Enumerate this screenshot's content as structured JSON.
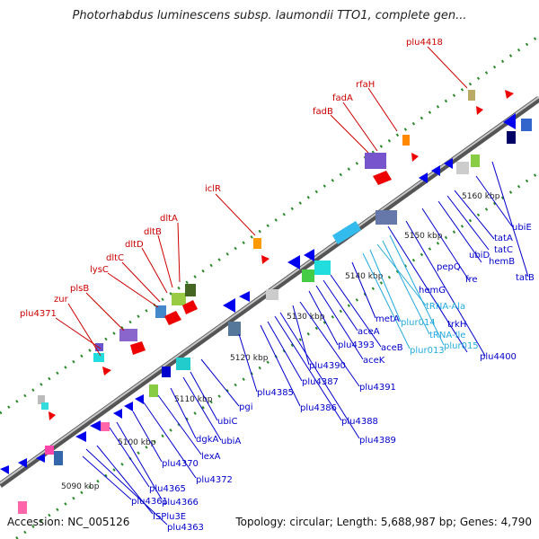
{
  "header": {
    "title": "Photorhabdus luminescens subsp. laumondii TTO1, complete gen..."
  },
  "footer": {
    "accession": "Accession: NC_005126",
    "topology": "Topology: circular; Length: 5,688,987 bp; Genes: 4,790"
  },
  "colors": {
    "upper_label": "#cc0000",
    "lower_label": "#0000cc",
    "rna_label": "#22aadd",
    "backbone": "#888888",
    "tick_dot": "#2a8a2a"
  },
  "ticks": [
    {
      "label": "5090 kbp"
    },
    {
      "label": "5100 kbp"
    },
    {
      "label": "5110 kbp"
    },
    {
      "label": "5120 kbp"
    },
    {
      "label": "5130 kbp"
    },
    {
      "label": "5140 kbp"
    },
    {
      "label": "5150 kbp"
    },
    {
      "label": "5160 kbp"
    }
  ],
  "upper_labels": [
    {
      "text": "plu4371"
    },
    {
      "text": "zur"
    },
    {
      "text": "plsB"
    },
    {
      "text": "lysC"
    },
    {
      "text": "dltC"
    },
    {
      "text": "dltD"
    },
    {
      "text": "dltB"
    },
    {
      "text": "dltA"
    },
    {
      "text": "iclR"
    },
    {
      "text": "fadB"
    },
    {
      "text": "fadA"
    },
    {
      "text": "rfaH"
    },
    {
      "text": "plu4418"
    }
  ],
  "lower_labels": [
    {
      "text": "plu4363",
      "kind": "cds"
    },
    {
      "text": "ISPlu3E",
      "kind": "cds"
    },
    {
      "text": "plu4361",
      "kind": "cds"
    },
    {
      "text": "plu4366",
      "kind": "cds"
    },
    {
      "text": "plu4365",
      "kind": "cds"
    },
    {
      "text": "plu4370",
      "kind": "cds"
    },
    {
      "text": "plu4372",
      "kind": "cds"
    },
    {
      "text": "lexA",
      "kind": "cds"
    },
    {
      "text": "dgkA",
      "kind": "cds"
    },
    {
      "text": "ubiA",
      "kind": "cds"
    },
    {
      "text": "ubiC",
      "kind": "cds"
    },
    {
      "text": "pgi",
      "kind": "cds"
    },
    {
      "text": "plu4385",
      "kind": "cds"
    },
    {
      "text": "plu4386",
      "kind": "cds"
    },
    {
      "text": "plu4387",
      "kind": "cds"
    },
    {
      "text": "plu4388",
      "kind": "cds"
    },
    {
      "text": "plu4389",
      "kind": "cds"
    },
    {
      "text": "plu4390",
      "kind": "cds"
    },
    {
      "text": "plu4391",
      "kind": "cds"
    },
    {
      "text": "plu4393",
      "kind": "cds"
    },
    {
      "text": "aceK",
      "kind": "cds"
    },
    {
      "text": "aceA",
      "kind": "cds"
    },
    {
      "text": "aceB",
      "kind": "cds"
    },
    {
      "text": "metA",
      "kind": "cds"
    },
    {
      "text": "plur013",
      "kind": "rna"
    },
    {
      "text": "plur014",
      "kind": "rna"
    },
    {
      "text": "tRNA-Ala",
      "kind": "rna"
    },
    {
      "text": "tRNA-Ile",
      "kind": "rna"
    },
    {
      "text": "plur015",
      "kind": "rna"
    },
    {
      "text": "hemG",
      "kind": "cds"
    },
    {
      "text": "trkH",
      "kind": "cds"
    },
    {
      "text": "plu4400",
      "kind": "cds"
    },
    {
      "text": "pepQ",
      "kind": "cds"
    },
    {
      "text": "fre",
      "kind": "cds"
    },
    {
      "text": "ubiD",
      "kind": "cds"
    },
    {
      "text": "hemB",
      "kind": "cds"
    },
    {
      "text": "tatC",
      "kind": "cds"
    },
    {
      "text": "tatA",
      "kind": "cds"
    },
    {
      "text": "tatB",
      "kind": "cds"
    },
    {
      "text": "ubiE",
      "kind": "cds"
    }
  ]
}
